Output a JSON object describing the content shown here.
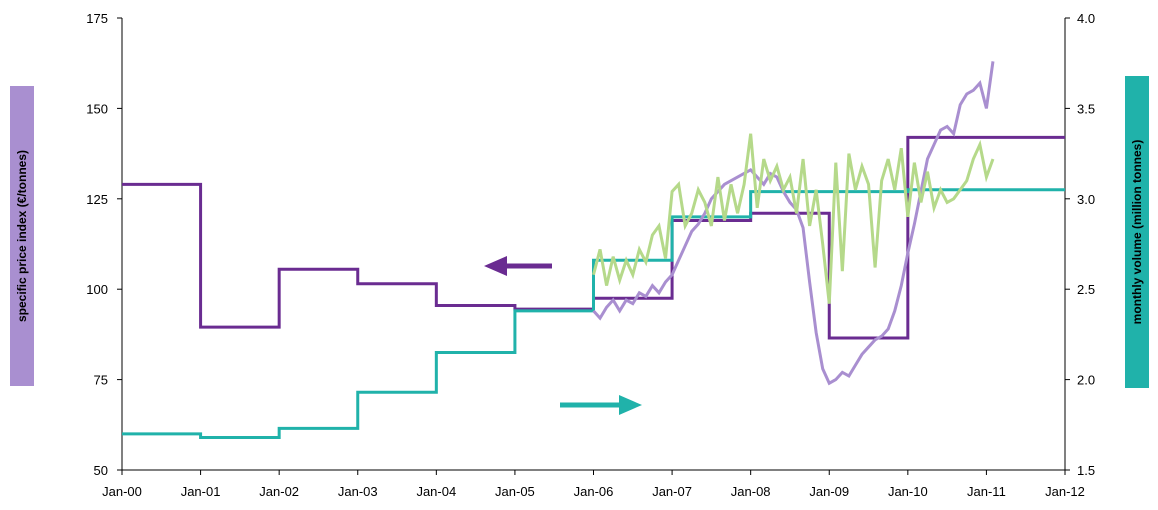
{
  "chart_data": {
    "type": "line",
    "title": "",
    "xlabel": "",
    "ylabel": "specific price index (€/tonnes)",
    "y2label": "monthly volume (million tonnes)",
    "xlim": [
      "2000-01",
      "2012-01"
    ],
    "ylim": [
      50,
      175
    ],
    "y2lim": [
      1.5,
      4.0
    ],
    "x_tick_labels": [
      "Jan-00",
      "Jan-01",
      "Jan-02",
      "Jan-03",
      "Jan-04",
      "Jan-05",
      "Jan-06",
      "Jan-07",
      "Jan-08",
      "Jan-09",
      "Jan-10",
      "Jan-11",
      "Jan-12"
    ],
    "y_tick_labels": [
      "50",
      "75",
      "100",
      "125",
      "150",
      "175"
    ],
    "y2_tick_labels": [
      "1.5",
      "2.0",
      "2.5",
      "3.0",
      "3.5",
      "4.0"
    ],
    "grid": false,
    "legend": "none",
    "annotations": [
      {
        "type": "arrow",
        "direction": "left",
        "meaning": "price series read on left axis",
        "color": "#6a2c91"
      },
      {
        "type": "arrow",
        "direction": "right",
        "meaning": "volume series read on right axis",
        "color": "#20b2aa"
      }
    ],
    "series": [
      {
        "axis": "left",
        "style": "step",
        "color": "#6a2c91",
        "width": 3,
        "points": [
          [
            "2000-01",
            129
          ],
          [
            "2001-01",
            89.5
          ],
          [
            "2002-01",
            105.5
          ],
          [
            "2003-01",
            101.5
          ],
          [
            "2004-01",
            95.5
          ],
          [
            "2005-01",
            94.5
          ],
          [
            "2006-01",
            97.5
          ],
          [
            "2007-01",
            119
          ],
          [
            "2008-01",
            121
          ],
          [
            "2009-01",
            86.5
          ],
          [
            "2010-01",
            142
          ],
          [
            "2011-01",
            142
          ]
        ]
      },
      {
        "axis": "right",
        "style": "step",
        "color": "#20b2aa",
        "width": 3,
        "points": [
          [
            "2000-01",
            1.7
          ],
          [
            "2001-01",
            1.68
          ],
          [
            "2002-01",
            1.73
          ],
          [
            "2003-01",
            1.93
          ],
          [
            "2004-01",
            2.15
          ],
          [
            "2005-01",
            2.38
          ],
          [
            "2006-01",
            2.66
          ],
          [
            "2007-01",
            2.9
          ],
          [
            "2008-01",
            3.04
          ],
          [
            "2009-01",
            3.04
          ],
          [
            "2010-01",
            3.05
          ],
          [
            "2011-01",
            3.05
          ]
        ]
      },
      {
        "axis": "left",
        "style": "line",
        "color": "#a98fd0",
        "width": 3,
        "points": [
          [
            "2006-01",
            94
          ],
          [
            "2006-02",
            92
          ],
          [
            "2006-03",
            95
          ],
          [
            "2006-04",
            97
          ],
          [
            "2006-05",
            94
          ],
          [
            "2006-06",
            97
          ],
          [
            "2006-07",
            96
          ],
          [
            "2006-08",
            99
          ],
          [
            "2006-09",
            98
          ],
          [
            "2006-10",
            101
          ],
          [
            "2006-11",
            99
          ],
          [
            "2006-12",
            102
          ],
          [
            "2007-01",
            104
          ],
          [
            "2007-02",
            108
          ],
          [
            "2007-03",
            112
          ],
          [
            "2007-04",
            116
          ],
          [
            "2007-05",
            118
          ],
          [
            "2007-06",
            121
          ],
          [
            "2007-07",
            125
          ],
          [
            "2007-08",
            127
          ],
          [
            "2007-09",
            129
          ],
          [
            "2007-10",
            130
          ],
          [
            "2007-11",
            131
          ],
          [
            "2007-12",
            132
          ],
          [
            "2008-01",
            133
          ],
          [
            "2008-02",
            131
          ],
          [
            "2008-03",
            129
          ],
          [
            "2008-04",
            132
          ],
          [
            "2008-05",
            131
          ],
          [
            "2008-06",
            127
          ],
          [
            "2008-07",
            124
          ],
          [
            "2008-08",
            122
          ],
          [
            "2008-09",
            117
          ],
          [
            "2008-10",
            102
          ],
          [
            "2008-11",
            88
          ],
          [
            "2008-12",
            78
          ],
          [
            "2009-01",
            74
          ],
          [
            "2009-02",
            75
          ],
          [
            "2009-03",
            77
          ],
          [
            "2009-04",
            76
          ],
          [
            "2009-05",
            79
          ],
          [
            "2009-06",
            82
          ],
          [
            "2009-07",
            84
          ],
          [
            "2009-08",
            86
          ],
          [
            "2009-09",
            87
          ],
          [
            "2009-10",
            89
          ],
          [
            "2009-11",
            94
          ],
          [
            "2009-12",
            101
          ],
          [
            "2010-01",
            110
          ],
          [
            "2010-02",
            118
          ],
          [
            "2010-03",
            127
          ],
          [
            "2010-04",
            136
          ],
          [
            "2010-05",
            140
          ],
          [
            "2010-06",
            144
          ],
          [
            "2010-07",
            145
          ],
          [
            "2010-08",
            143
          ],
          [
            "2010-09",
            151
          ],
          [
            "2010-10",
            154
          ],
          [
            "2010-11",
            155
          ],
          [
            "2010-12",
            157
          ],
          [
            "2011-01",
            150
          ],
          [
            "2011-02",
            163
          ]
        ]
      },
      {
        "axis": "right",
        "style": "line",
        "color": "#b5d98a",
        "width": 3,
        "points": [
          [
            "2006-01",
            2.58
          ],
          [
            "2006-02",
            2.72
          ],
          [
            "2006-03",
            2.52
          ],
          [
            "2006-04",
            2.68
          ],
          [
            "2006-05",
            2.55
          ],
          [
            "2006-06",
            2.66
          ],
          [
            "2006-07",
            2.58
          ],
          [
            "2006-08",
            2.72
          ],
          [
            "2006-09",
            2.65
          ],
          [
            "2006-10",
            2.8
          ],
          [
            "2006-11",
            2.85
          ],
          [
            "2006-12",
            2.67
          ],
          [
            "2007-01",
            3.04
          ],
          [
            "2007-02",
            3.08
          ],
          [
            "2007-03",
            2.85
          ],
          [
            "2007-04",
            2.92
          ],
          [
            "2007-05",
            3.05
          ],
          [
            "2007-06",
            2.98
          ],
          [
            "2007-07",
            2.85
          ],
          [
            "2007-08",
            3.12
          ],
          [
            "2007-09",
            2.88
          ],
          [
            "2007-10",
            3.08
          ],
          [
            "2007-11",
            2.92
          ],
          [
            "2007-12",
            3.08
          ],
          [
            "2008-01",
            3.36
          ],
          [
            "2008-02",
            2.95
          ],
          [
            "2008-03",
            3.22
          ],
          [
            "2008-04",
            3.1
          ],
          [
            "2008-05",
            3.18
          ],
          [
            "2008-06",
            3.05
          ],
          [
            "2008-07",
            3.12
          ],
          [
            "2008-08",
            2.92
          ],
          [
            "2008-09",
            3.22
          ],
          [
            "2008-10",
            2.85
          ],
          [
            "2008-11",
            3.05
          ],
          [
            "2008-12",
            2.75
          ],
          [
            "2009-01",
            2.42
          ],
          [
            "2009-02",
            3.2
          ],
          [
            "2009-03",
            2.6
          ],
          [
            "2009-04",
            3.25
          ],
          [
            "2009-05",
            3.05
          ],
          [
            "2009-06",
            3.18
          ],
          [
            "2009-07",
            3.08
          ],
          [
            "2009-08",
            2.62
          ],
          [
            "2009-09",
            3.1
          ],
          [
            "2009-10",
            3.22
          ],
          [
            "2009-11",
            3.05
          ],
          [
            "2009-12",
            3.28
          ],
          [
            "2010-01",
            2.9
          ],
          [
            "2010-02",
            3.2
          ],
          [
            "2010-03",
            2.98
          ],
          [
            "2010-04",
            3.15
          ],
          [
            "2010-05",
            2.95
          ],
          [
            "2010-06",
            3.05
          ],
          [
            "2010-07",
            2.98
          ],
          [
            "2010-08",
            3.0
          ],
          [
            "2010-09",
            3.05
          ],
          [
            "2010-10",
            3.1
          ],
          [
            "2010-11",
            3.22
          ],
          [
            "2010-12",
            3.3
          ],
          [
            "2011-01",
            3.12
          ],
          [
            "2011-02",
            3.22
          ]
        ]
      }
    ]
  }
}
